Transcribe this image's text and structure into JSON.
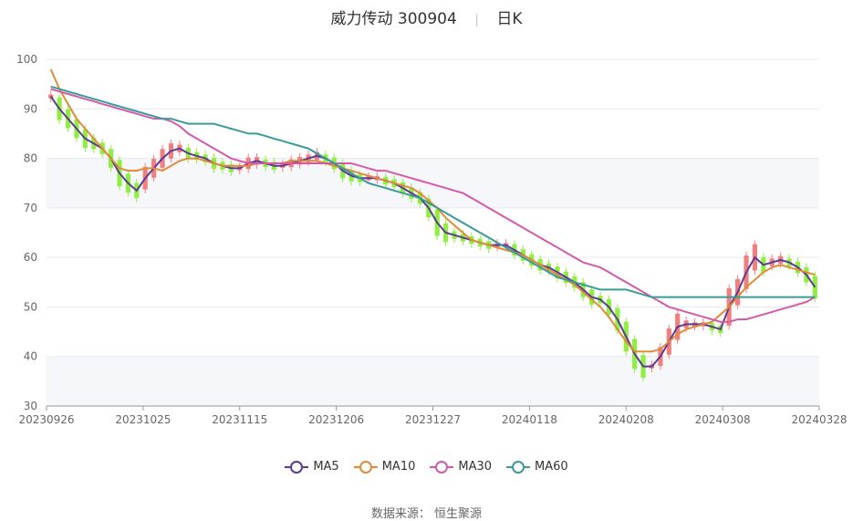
{
  "chart_data": {
    "type": "candlestick",
    "title": "威力传动 300904",
    "period": "日K",
    "ylim": [
      30,
      100
    ],
    "y_ticks": [
      30,
      40,
      50,
      60,
      70,
      80,
      90,
      100
    ],
    "x_tick_labels": [
      "20230926",
      "20231025",
      "20231115",
      "20231206",
      "20231227",
      "20240118",
      "20240208",
      "20240308",
      "20240328"
    ],
    "colors": {
      "up": "#f08080",
      "down": "#90ee40",
      "ma5": "#5b3a92",
      "ma10": "#e08a3a",
      "ma30": "#d45aa8",
      "ma60": "#3a9a98"
    },
    "series": [
      {
        "name": "MA5",
        "values": [
          92.5,
          90,
          88,
          86,
          84,
          83,
          82,
          80,
          77,
          75,
          73.5,
          76,
          78,
          80,
          81.5,
          82,
          81,
          80.5,
          80,
          79,
          78.5,
          78,
          78,
          79,
          79.5,
          79,
          78.5,
          78.5,
          79,
          79.5,
          80,
          80.5,
          80,
          79,
          77.5,
          76.5,
          76,
          76,
          76,
          75.5,
          75,
          74,
          73,
          72,
          70,
          67,
          65,
          64.5,
          64,
          63.5,
          63,
          62.5,
          62.5,
          62.5,
          61.5,
          60.5,
          59.5,
          58.5,
          58,
          57,
          56,
          55,
          53.5,
          52,
          51.5,
          50,
          47.5,
          44,
          40.5,
          38,
          38,
          40,
          43,
          46,
          46.5,
          46.5,
          46.5,
          46,
          45.5,
          50,
          53,
          57,
          60,
          58.5,
          59,
          59.5,
          59,
          58,
          56.5,
          54
        ]
      },
      {
        "name": "MA10",
        "values": [
          98,
          94,
          91,
          88,
          86,
          84,
          82,
          80,
          78,
          77.5,
          77.5,
          78,
          78,
          77.5,
          78.5,
          79.5,
          80,
          80,
          79.5,
          79,
          78.5,
          78.5,
          78.5,
          78.5,
          79,
          79,
          79,
          79,
          79.5,
          79.5,
          79.5,
          79.5,
          79,
          78.5,
          78,
          77.5,
          77,
          76.5,
          76,
          75.5,
          75,
          74.5,
          74,
          73,
          71.5,
          70,
          68,
          66.5,
          65,
          63.5,
          63,
          62.5,
          62,
          61.5,
          61,
          60.5,
          59.5,
          58.5,
          57.5,
          56.5,
          55.5,
          54.5,
          53,
          51.5,
          50,
          48,
          45.5,
          43,
          41,
          41,
          41,
          41.5,
          43,
          44.5,
          45.5,
          46,
          46.5,
          47,
          48.5,
          50,
          52,
          54,
          55.5,
          57,
          58,
          58.5,
          58,
          57.5,
          57,
          56.5
        ]
      },
      {
        "name": "MA30",
        "values": [
          94,
          93.5,
          93,
          92.5,
          92,
          91.5,
          91,
          90.5,
          90,
          89.5,
          89,
          88.5,
          88,
          88,
          87.5,
          86.5,
          85,
          84,
          83,
          82,
          81,
          80,
          79.5,
          79,
          79,
          79,
          79,
          79,
          79,
          79,
          79,
          79,
          79,
          79,
          79,
          79,
          78.5,
          78,
          77.5,
          77.5,
          77,
          76.5,
          76,
          75.5,
          75,
          74.5,
          74,
          73.5,
          73,
          72,
          71,
          70,
          69,
          68,
          67,
          66,
          65,
          64,
          63,
          62,
          61,
          60,
          59,
          58.5,
          58,
          57,
          56,
          55,
          54,
          53,
          52,
          51,
          50,
          49.5,
          49,
          48.5,
          48,
          47.5,
          47,
          47,
          47.5,
          47.5,
          48,
          48.5,
          49,
          49.5,
          50,
          50.5,
          51,
          52
        ]
      },
      {
        "name": "MA60",
        "values": [
          94.5,
          94,
          93.5,
          93,
          92.5,
          92,
          91.5,
          91,
          90.5,
          90,
          89.5,
          89,
          88.5,
          88,
          88,
          87.5,
          87,
          87,
          87,
          87,
          86.5,
          86,
          85.5,
          85,
          85,
          84.5,
          84,
          83.5,
          83,
          82.5,
          82,
          81,
          80,
          79,
          78,
          77,
          76,
          75,
          74.5,
          74,
          73.5,
          73,
          72.5,
          72,
          71,
          70,
          69,
          68,
          67,
          66,
          65,
          64,
          63,
          62,
          61,
          60,
          59,
          58,
          57,
          56,
          55.5,
          55,
          54.5,
          54,
          53.5,
          53.5,
          53.5,
          53.5,
          53,
          52.5,
          52,
          52,
          52,
          52,
          52,
          52,
          52,
          52,
          52,
          52,
          52,
          52,
          52,
          52,
          52,
          52,
          52,
          52,
          52,
          52
        ]
      }
    ],
    "legend": [
      "MA5",
      "MA10",
      "MA30",
      "MA60"
    ],
    "source": "数据来源：  恒生聚源"
  }
}
